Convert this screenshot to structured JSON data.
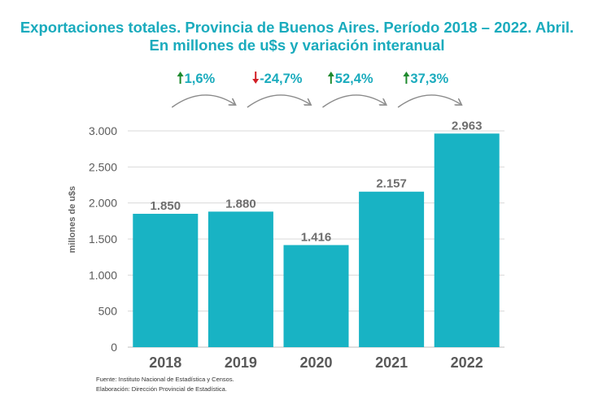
{
  "title": "Exportaciones totales. Provincia de Buenos Aires. Período 2018 – 2022. Abril.",
  "subtitle": "En millones de u$s y variación interanual",
  "colors": {
    "bar": "#18b3c4",
    "title": "#1aabbd",
    "up": "#1e8a2e",
    "down": "#d21f26",
    "grid": "#d9d9d9",
    "arrow": "#8a8a8a"
  },
  "chart_data": {
    "type": "bar",
    "title": "Exportaciones totales. Provincia de Buenos Aires. Período 2018 – 2022. Abril.",
    "subtitle": "En millones de u$s y variación interanual",
    "ylabel": "millones de u$s",
    "xlabel": "",
    "categories": [
      "2018",
      "2019",
      "2020",
      "2021",
      "2022"
    ],
    "values": [
      1850,
      1880,
      1416,
      2157,
      2963
    ],
    "value_labels": [
      "1.850",
      "1.880",
      "1.416",
      "2.157",
      "2.963"
    ],
    "ylim": [
      0,
      3000
    ],
    "yticks": [
      0,
      500,
      1000,
      1500,
      2000,
      2500,
      3000
    ],
    "ytick_labels": [
      "0",
      "500",
      "1.000",
      "1.500",
      "2.000",
      "2.500",
      "3.000"
    ],
    "grid": true,
    "variations": [
      {
        "from": "2018",
        "to": "2019",
        "label": "1,6%",
        "direction": "up"
      },
      {
        "from": "2019",
        "to": "2020",
        "label": "-24,7%",
        "direction": "down"
      },
      {
        "from": "2020",
        "to": "2021",
        "label": "52,4%",
        "direction": "up"
      },
      {
        "from": "2021",
        "to": "2022",
        "label": "37,3%",
        "direction": "up"
      }
    ]
  },
  "footer": {
    "source": "Fuente: Instituto Nacional de Estadística y Censos.",
    "elaboration": "Elaboración: Dirección Provincial de Estadística."
  }
}
